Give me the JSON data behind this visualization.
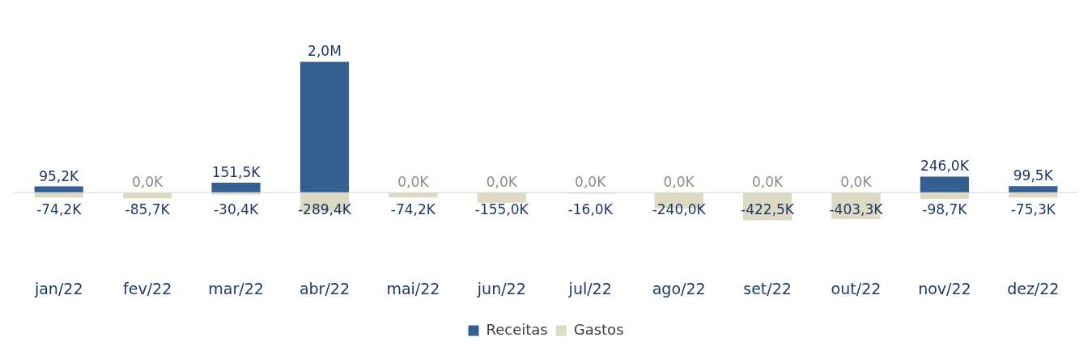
{
  "chart_data": {
    "type": "bar",
    "legend": "bottom",
    "grid": false,
    "categories": [
      "jan/22",
      "fev/22",
      "mar/22",
      "abr/22",
      "mai/22",
      "jun/22",
      "jul/22",
      "ago/22",
      "set/22",
      "out/22",
      "nov/22",
      "dez/22"
    ],
    "series": [
      {
        "name": "Receitas",
        "color": "#335f91",
        "values": [
          95200,
          0,
          151500,
          2000000,
          0,
          0,
          0,
          0,
          0,
          0,
          246000,
          99500
        ],
        "value_labels": [
          "95,2K",
          "0,0K",
          "151,5K",
          "2,0M",
          "0,0K",
          "0,0K",
          "0,0K",
          "0,0K",
          "0,0K",
          "0,0K",
          "246,0K",
          "99,5K"
        ]
      },
      {
        "name": "Gastos",
        "color": "#ddd9c3",
        "values": [
          -74200,
          -85700,
          -30400,
          -289400,
          -74200,
          -155000,
          -16000,
          -240000,
          -422500,
          -403300,
          -98700,
          -75300
        ],
        "value_labels": [
          "-74,2K",
          "-85,7K",
          "-30,4K",
          "-289,4K",
          "-74,2K",
          "-155,0K",
          "-16,0K",
          "-240,0K",
          "-422,5K",
          "-403,3K",
          "-98,7K",
          "-75,3K"
        ]
      }
    ]
  }
}
